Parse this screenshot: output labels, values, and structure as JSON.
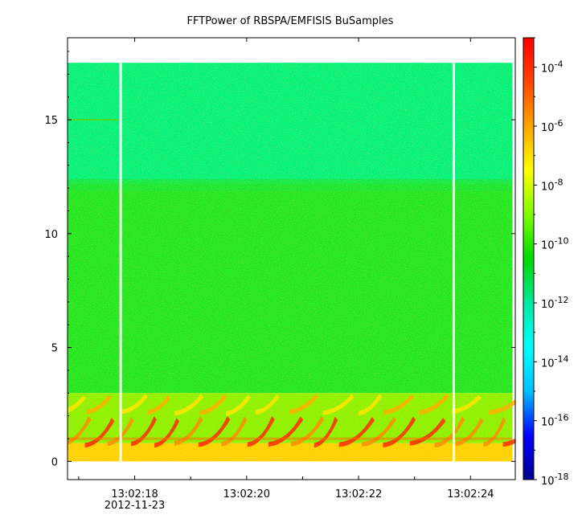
{
  "chart_data": {
    "type": "heatmap",
    "title": "FFTPower of RBSPA/EMFISIS  BuSamples",
    "xlabel": "",
    "ylabel": "",
    "x_range": [
      "13:02:16.8",
      "13:02:24.8"
    ],
    "x_ticks": [
      {
        "t": 18,
        "label": "13:02:18",
        "sublabel": "2012-11-23"
      },
      {
        "t": 20,
        "label": "13:02:20",
        "sublabel": ""
      },
      {
        "t": 22,
        "label": "13:02:22",
        "sublabel": ""
      },
      {
        "t": 24,
        "label": "13:02:24",
        "sublabel": ""
      }
    ],
    "x_minor_ticks": [
      17,
      19,
      21,
      23
    ],
    "ylim": [
      -0.8,
      18.6
    ],
    "y_ticks": [
      0,
      5,
      10,
      15
    ],
    "colorbar": {
      "scale": "log",
      "range": [
        1e-18,
        0.001
      ],
      "tick_exponents": [
        -18,
        -16,
        -14,
        -12,
        -10,
        -8,
        -6,
        -4
      ],
      "tick_base": "10",
      "colormap": [
        "#00008b",
        "#0000ff",
        "#00bfff",
        "#00ffff",
        "#00e8a0",
        "#00d800",
        "#7fff00",
        "#ffff00",
        "#ffa500",
        "#ff4500",
        "#ff0000"
      ]
    },
    "data_extent": {
      "t_start": 16.8,
      "t_end": 24.75,
      "f_min": 0,
      "f_max": 17.5
    },
    "regions": [
      {
        "f_from": 12.2,
        "f_to": 17.5,
        "level": -12.8,
        "color": "#00f07a"
      },
      {
        "f_from": 3,
        "f_to": 12.2,
        "level": -10.3,
        "color": "#1fe61f"
      },
      {
        "f_from": 0,
        "f_to": 0.8,
        "level": -7.5,
        "color": "#ffd000"
      }
    ],
    "data_gaps_t": [
      17.75,
      23.7
    ],
    "chorus_bands": [
      {
        "f_from": 0.8,
        "f_to": 2.0,
        "level": -5,
        "description": "rising-tone chorus elements"
      },
      {
        "f_from": 2.2,
        "f_to": 3.0,
        "level": -7,
        "description": "upper-band chorus elements"
      }
    ]
  }
}
